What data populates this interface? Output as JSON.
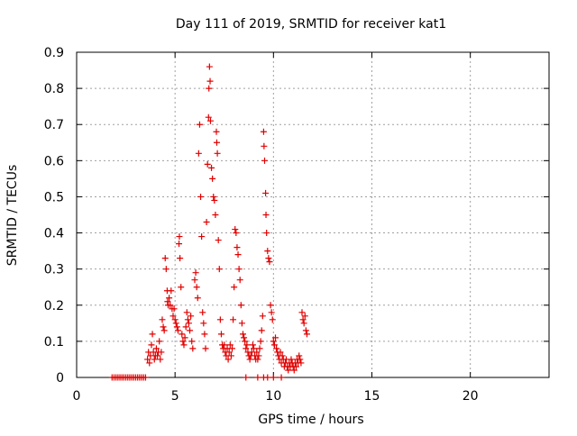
{
  "chart_data": {
    "type": "scatter",
    "title": "Day 111 of 2019, SRMTID for receiver kat1",
    "xlabel": "GPS time / hours",
    "ylabel": "SRMTID / TECUs",
    "xlim": [
      0,
      24
    ],
    "ylim": [
      0,
      0.9
    ],
    "x_ticks": [
      0,
      5,
      10,
      15,
      20
    ],
    "x_tick_labels": [
      "0",
      "5",
      "10",
      "15",
      "20"
    ],
    "y_ticks": [
      0,
      0.1,
      0.2,
      0.3,
      0.4,
      0.5,
      0.6,
      0.7,
      0.8,
      0.9
    ],
    "y_tick_labels": [
      "0",
      "0.1",
      "0.2",
      "0.3",
      "0.4",
      "0.5",
      "0.6",
      "0.7",
      "0.8",
      "0.9"
    ],
    "grid": true,
    "marker": "+",
    "series": [
      {
        "name": "SRMTID",
        "color": "#e00000",
        "points": [
          [
            1.8,
            0
          ],
          [
            1.9,
            0
          ],
          [
            2.0,
            0
          ],
          [
            2.1,
            0
          ],
          [
            2.2,
            0
          ],
          [
            2.3,
            0
          ],
          [
            2.4,
            0
          ],
          [
            2.5,
            0
          ],
          [
            2.6,
            0
          ],
          [
            2.7,
            0
          ],
          [
            2.8,
            0
          ],
          [
            2.9,
            0
          ],
          [
            3.0,
            0
          ],
          [
            3.1,
            0
          ],
          [
            3.2,
            0
          ],
          [
            3.3,
            0
          ],
          [
            3.4,
            0
          ],
          [
            3.5,
            0
          ],
          [
            8.6,
            0
          ],
          [
            9.2,
            0
          ],
          [
            9.5,
            0
          ],
          [
            9.7,
            0
          ],
          [
            10.0,
            0
          ],
          [
            10.4,
            0
          ],
          [
            3.6,
            0.05
          ],
          [
            3.65,
            0.07
          ],
          [
            3.7,
            0.04
          ],
          [
            3.75,
            0.06
          ],
          [
            3.8,
            0.09
          ],
          [
            3.85,
            0.12
          ],
          [
            3.9,
            0.07
          ],
          [
            3.95,
            0.05
          ],
          [
            4.0,
            0.06
          ],
          [
            4.05,
            0.08
          ],
          [
            4.1,
            0.06
          ],
          [
            4.15,
            0.07
          ],
          [
            4.2,
            0.1
          ],
          [
            4.25,
            0.05
          ],
          [
            4.3,
            0.07
          ],
          [
            4.35,
            0.16
          ],
          [
            4.4,
            0.14
          ],
          [
            4.45,
            0.13
          ],
          [
            4.5,
            0.33
          ],
          [
            4.55,
            0.3
          ],
          [
            4.6,
            0.24
          ],
          [
            4.62,
            0.21
          ],
          [
            4.65,
            0.2
          ],
          [
            4.7,
            0.22
          ],
          [
            4.75,
            0.2
          ],
          [
            4.8,
            0.24
          ],
          [
            4.85,
            0.19
          ],
          [
            4.9,
            0.17
          ],
          [
            4.95,
            0.19
          ],
          [
            5.0,
            0.16
          ],
          [
            5.05,
            0.15
          ],
          [
            5.1,
            0.14
          ],
          [
            5.15,
            0.13
          ],
          [
            5.2,
            0.37
          ],
          [
            5.22,
            0.39
          ],
          [
            5.25,
            0.33
          ],
          [
            5.3,
            0.25
          ],
          [
            5.35,
            0.12
          ],
          [
            5.4,
            0.1
          ],
          [
            5.45,
            0.09
          ],
          [
            5.5,
            0.11
          ],
          [
            5.55,
            0.14
          ],
          [
            5.6,
            0.18
          ],
          [
            5.65,
            0.16
          ],
          [
            5.7,
            0.15
          ],
          [
            5.75,
            0.13
          ],
          [
            5.8,
            0.17
          ],
          [
            5.85,
            0.1
          ],
          [
            5.9,
            0.08
          ],
          [
            6.0,
            0.27
          ],
          [
            6.05,
            0.29
          ],
          [
            6.1,
            0.25
          ],
          [
            6.15,
            0.22
          ],
          [
            6.2,
            0.62
          ],
          [
            6.25,
            0.7
          ],
          [
            6.3,
            0.5
          ],
          [
            6.35,
            0.39
          ],
          [
            6.4,
            0.18
          ],
          [
            6.45,
            0.15
          ],
          [
            6.5,
            0.12
          ],
          [
            6.55,
            0.08
          ],
          [
            6.6,
            0.43
          ],
          [
            6.65,
            0.59
          ],
          [
            6.7,
            0.72
          ],
          [
            6.72,
            0.8
          ],
          [
            6.75,
            0.86
          ],
          [
            6.78,
            0.82
          ],
          [
            6.8,
            0.71
          ],
          [
            6.85,
            0.58
          ],
          [
            6.9,
            0.55
          ],
          [
            6.95,
            0.5
          ],
          [
            7.0,
            0.49
          ],
          [
            7.05,
            0.45
          ],
          [
            7.1,
            0.68
          ],
          [
            7.12,
            0.65
          ],
          [
            7.15,
            0.62
          ],
          [
            7.2,
            0.38
          ],
          [
            7.25,
            0.3
          ],
          [
            7.3,
            0.16
          ],
          [
            7.35,
            0.12
          ],
          [
            7.4,
            0.09
          ],
          [
            7.45,
            0.08
          ],
          [
            7.5,
            0.09
          ],
          [
            7.55,
            0.07
          ],
          [
            7.6,
            0.06
          ],
          [
            7.65,
            0.08
          ],
          [
            7.7,
            0.05
          ],
          [
            7.75,
            0.07
          ],
          [
            7.8,
            0.09
          ],
          [
            7.85,
            0.06
          ],
          [
            7.9,
            0.08
          ],
          [
            7.95,
            0.16
          ],
          [
            8.0,
            0.25
          ],
          [
            8.05,
            0.41
          ],
          [
            8.1,
            0.4
          ],
          [
            8.15,
            0.36
          ],
          [
            8.2,
            0.34
          ],
          [
            8.25,
            0.3
          ],
          [
            8.3,
            0.27
          ],
          [
            8.35,
            0.2
          ],
          [
            8.4,
            0.15
          ],
          [
            8.45,
            0.12
          ],
          [
            8.5,
            0.11
          ],
          [
            8.55,
            0.1
          ],
          [
            8.6,
            0.08
          ],
          [
            8.65,
            0.09
          ],
          [
            8.7,
            0.07
          ],
          [
            8.75,
            0.06
          ],
          [
            8.8,
            0.05
          ],
          [
            8.85,
            0.06
          ],
          [
            8.9,
            0.07
          ],
          [
            8.95,
            0.09
          ],
          [
            9.0,
            0.08
          ],
          [
            9.05,
            0.06
          ],
          [
            9.1,
            0.05
          ],
          [
            9.15,
            0.07
          ],
          [
            9.2,
            0.05
          ],
          [
            9.25,
            0.06
          ],
          [
            9.3,
            0.08
          ],
          [
            9.35,
            0.1
          ],
          [
            9.4,
            0.13
          ],
          [
            9.45,
            0.17
          ],
          [
            9.5,
            0.68
          ],
          [
            9.52,
            0.64
          ],
          [
            9.55,
            0.6
          ],
          [
            9.6,
            0.51
          ],
          [
            9.62,
            0.45
          ],
          [
            9.65,
            0.4
          ],
          [
            9.7,
            0.35
          ],
          [
            9.75,
            0.33
          ],
          [
            9.8,
            0.32
          ],
          [
            9.85,
            0.2
          ],
          [
            9.9,
            0.18
          ],
          [
            9.95,
            0.16
          ],
          [
            10.0,
            0.1
          ],
          [
            10.05,
            0.09
          ],
          [
            10.1,
            0.11
          ],
          [
            10.15,
            0.08
          ],
          [
            10.2,
            0.07
          ],
          [
            10.25,
            0.06
          ],
          [
            10.3,
            0.05
          ],
          [
            10.35,
            0.07
          ],
          [
            10.4,
            0.04
          ],
          [
            10.45,
            0.06
          ],
          [
            10.5,
            0.05
          ],
          [
            10.55,
            0.03
          ],
          [
            10.6,
            0.04
          ],
          [
            10.65,
            0.05
          ],
          [
            10.7,
            0.03
          ],
          [
            10.75,
            0.02
          ],
          [
            10.8,
            0.04
          ],
          [
            10.85,
            0.03
          ],
          [
            10.9,
            0.05
          ],
          [
            10.95,
            0.04
          ],
          [
            11.0,
            0.03
          ],
          [
            11.05,
            0.02
          ],
          [
            11.1,
            0.04
          ],
          [
            11.15,
            0.03
          ],
          [
            11.2,
            0.05
          ],
          [
            11.25,
            0.04
          ],
          [
            11.3,
            0.06
          ],
          [
            11.35,
            0.05
          ],
          [
            11.4,
            0.04
          ],
          [
            11.45,
            0.18
          ],
          [
            11.5,
            0.16
          ],
          [
            11.55,
            0.15
          ],
          [
            11.6,
            0.17
          ],
          [
            11.65,
            0.13
          ],
          [
            11.7,
            0.12
          ]
        ]
      }
    ]
  }
}
